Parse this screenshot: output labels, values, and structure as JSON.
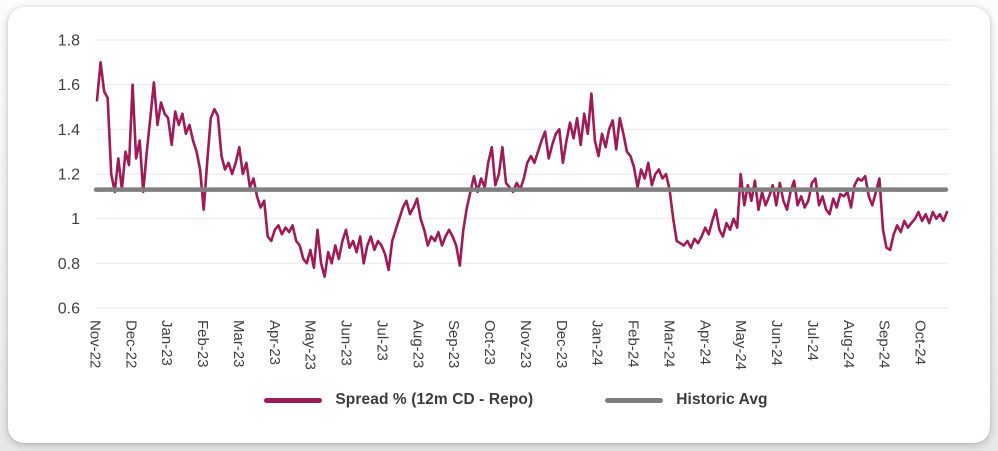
{
  "chart_data": {
    "type": "line",
    "title": "",
    "xlabel": "",
    "ylabel": "",
    "ylim": [
      0.6,
      1.8
    ],
    "ytick_labels": [
      "1.8",
      "1.6",
      "1.4",
      "1.2",
      "1",
      "0.8",
      "0.6"
    ],
    "grid": "horizontal",
    "legend_position": "bottom",
    "x_categories": [
      "Nov-22",
      "Dec-22",
      "Jan-23",
      "Feb-23",
      "Mar-23",
      "Apr-23",
      "May-23",
      "Jun-23",
      "Jul-23",
      "Aug-23",
      "Sep-23",
      "Oct-23",
      "Nov-23",
      "Dec-23",
      "Jan-24",
      "Feb-24",
      "Mar-24",
      "Apr-24",
      "May-24",
      "Jun-24",
      "Jul-24",
      "Aug-24",
      "Sep-24",
      "Oct-24"
    ],
    "points_per_category": 10,
    "series": [
      {
        "name": "Spread % (12m CD - Repo)",
        "color": "#9e1b57",
        "values": [
          1.53,
          1.7,
          1.57,
          1.54,
          1.2,
          1.12,
          1.27,
          1.13,
          1.3,
          1.24,
          1.6,
          1.27,
          1.35,
          1.12,
          1.3,
          1.45,
          1.61,
          1.42,
          1.52,
          1.47,
          1.45,
          1.33,
          1.48,
          1.42,
          1.47,
          1.38,
          1.42,
          1.35,
          1.3,
          1.22,
          1.04,
          1.26,
          1.45,
          1.49,
          1.46,
          1.28,
          1.22,
          1.25,
          1.2,
          1.25,
          1.32,
          1.2,
          1.25,
          1.14,
          1.18,
          1.1,
          1.05,
          1.08,
          0.92,
          0.9,
          0.95,
          0.97,
          0.93,
          0.96,
          0.94,
          0.97,
          0.9,
          0.88,
          0.82,
          0.8,
          0.86,
          0.78,
          0.95,
          0.8,
          0.74,
          0.85,
          0.8,
          0.88,
          0.82,
          0.9,
          0.95,
          0.87,
          0.9,
          0.85,
          0.92,
          0.8,
          0.88,
          0.92,
          0.86,
          0.9,
          0.88,
          0.84,
          0.77,
          0.9,
          0.95,
          1.0,
          1.05,
          1.08,
          1.02,
          1.05,
          1.09,
          1.0,
          0.95,
          0.88,
          0.92,
          0.9,
          0.94,
          0.88,
          0.92,
          0.95,
          0.92,
          0.88,
          0.79,
          0.95,
          1.05,
          1.12,
          1.19,
          1.12,
          1.18,
          1.14,
          1.25,
          1.32,
          1.15,
          1.2,
          1.32,
          1.16,
          1.14,
          1.12,
          1.16,
          1.13,
          1.18,
          1.25,
          1.28,
          1.25,
          1.3,
          1.35,
          1.39,
          1.27,
          1.33,
          1.38,
          1.4,
          1.25,
          1.35,
          1.43,
          1.36,
          1.45,
          1.33,
          1.47,
          1.38,
          1.56,
          1.35,
          1.28,
          1.38,
          1.32,
          1.4,
          1.44,
          1.31,
          1.45,
          1.38,
          1.3,
          1.28,
          1.23,
          1.14,
          1.22,
          1.18,
          1.25,
          1.15,
          1.2,
          1.22,
          1.18,
          1.2,
          1.13,
          1.0,
          0.9,
          0.89,
          0.88,
          0.9,
          0.87,
          0.91,
          0.89,
          0.92,
          0.96,
          0.93,
          0.99,
          1.04,
          0.95,
          0.92,
          0.98,
          0.95,
          1.0,
          0.96,
          1.2,
          1.06,
          1.15,
          1.08,
          1.17,
          1.04,
          1.12,
          1.06,
          1.1,
          1.15,
          1.06,
          1.16,
          1.08,
          1.04,
          1.12,
          1.17,
          1.06,
          1.1,
          1.05,
          1.08,
          1.16,
          1.18,
          1.06,
          1.1,
          1.04,
          1.02,
          1.09,
          1.05,
          1.11,
          1.1,
          1.12,
          1.05,
          1.15,
          1.18,
          1.17,
          1.19,
          1.1,
          1.06,
          1.12,
          1.18,
          0.95,
          0.87,
          0.86,
          0.93,
          0.97,
          0.94,
          0.99,
          0.96,
          0.98,
          1.0,
          1.03,
          0.99,
          1.02,
          0.98,
          1.03,
          1.0,
          1.02,
          0.99,
          1.03
        ]
      },
      {
        "name": "Historic Avg",
        "color": "#7f7f7f",
        "type": "constant",
        "value": 1.13
      }
    ]
  },
  "colors": {
    "series_line": "#9e1b57",
    "avg_line": "#7f7f7f",
    "gridline": "#eaeaea",
    "tick_text": "#404040",
    "legend_text": "#3b3b3b",
    "card_bg": "#ffffff"
  }
}
